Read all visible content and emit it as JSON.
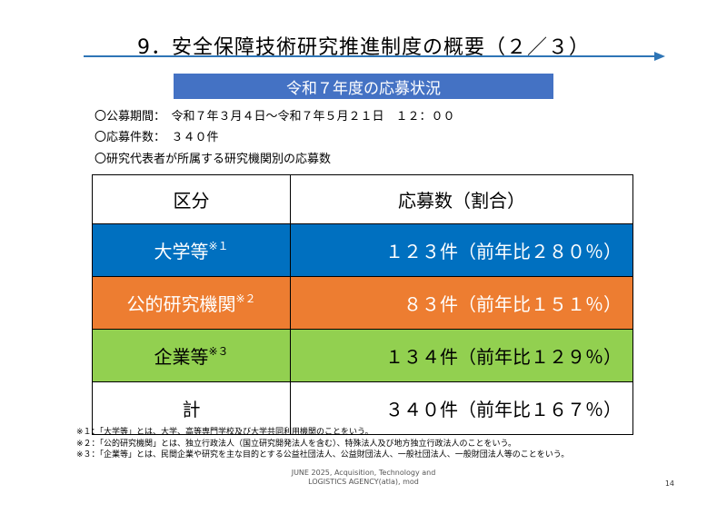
{
  "title": "9．安全保障技術研究推進制度の概要（２／３）",
  "subtitle": "令和７年度の応募状況",
  "info": {
    "period": "〇公募期間：　令和７年３月４日～令和７年５月２１日　１２：００",
    "count": "〇応募件数：　３４０件",
    "breakdown_title": "〇研究代表者が所属する研究機関別の応募数"
  },
  "table": {
    "headers": [
      "区分",
      "応募数（割合）"
    ],
    "rows": [
      {
        "category": "大学等",
        "note_mark": "※１",
        "value": "１２３件（前年比２８０％）",
        "color": "#0070c0"
      },
      {
        "category": "公的研究機関",
        "note_mark": "※２",
        "value": "８３件（前年比１５１％）",
        "color": "#ed7d31"
      },
      {
        "category": "企業等",
        "note_mark": "※３",
        "value": "１３４件（前年比１２９％）",
        "color": "#92d050"
      },
      {
        "category": "計",
        "note_mark": "",
        "value": "３４０件（前年比１６７％）",
        "color": "#ffffff"
      }
    ]
  },
  "notes": [
    "※１：「大学等」とは、大学、高等専門学校及び大学共同利用機関のことをいう。",
    "※２：「公的研究機関」とは、独立行政法人（国立研究開発法人を含む）、特殊法人及び地方独立行政法人のことをいう。",
    "※３：「企業等」とは、民間企業や研究を主な目的とする公益社団法人、公益財団法人、一般社団法人、一般財団法人等のことをいう。"
  ],
  "footer": {
    "source_line1": "JUNE 2025, Acquisition, Technology and",
    "source_line2": "LOGISTICS AGENCY(atla), mod",
    "page_number": "14"
  },
  "colors": {
    "accent_blue": "#4472c4",
    "arrow_blue": "#2e75b6"
  }
}
